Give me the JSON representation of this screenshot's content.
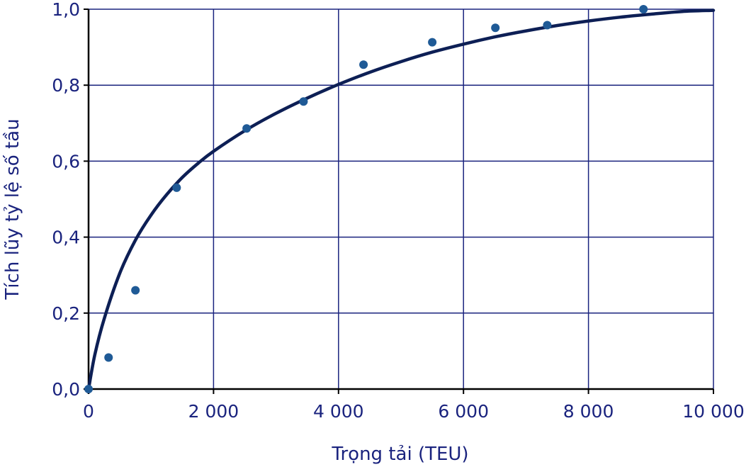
{
  "chart_data": {
    "type": "scatter",
    "xlabel": "Trọng tải (TEU)",
    "ylabel": "Tích lũy tỷ lệ số tầu",
    "xlim": [
      0,
      10000
    ],
    "ylim": [
      0,
      1
    ],
    "grid": true,
    "x_ticks": [
      0,
      2000,
      4000,
      6000,
      8000,
      10000
    ],
    "x_tick_labels": [
      "0",
      "2 000",
      "4 000",
      "6 000",
      "8 000",
      "10 000"
    ],
    "y_ticks": [
      0,
      0.2,
      0.4,
      0.6,
      0.8,
      1.0
    ],
    "y_tick_labels": [
      "0,0",
      "0,2",
      "0,4",
      "0,6",
      "0,8",
      "1,0"
    ],
    "series": [
      {
        "kind": "points",
        "x": [
          0,
          320,
          750,
          1410,
          2530,
          3440,
          4400,
          5500,
          6510,
          7340,
          8880
        ],
        "y": [
          0.0,
          0.083,
          0.26,
          0.53,
          0.686,
          0.757,
          0.854,
          0.913,
          0.951,
          0.958,
          1.0
        ]
      },
      {
        "kind": "fitted-curve",
        "x": [
          0,
          100,
          250,
          500,
          750,
          1000,
          1250,
          1500,
          1750,
          2000,
          2500,
          3000,
          3500,
          4000,
          4500,
          5000,
          5500,
          6000,
          6500,
          7000,
          7500,
          8000,
          8500,
          9000,
          9500,
          10000
        ],
        "y": [
          0.0,
          0.09,
          0.185,
          0.305,
          0.392,
          0.458,
          0.512,
          0.557,
          0.594,
          0.626,
          0.68,
          0.726,
          0.766,
          0.802,
          0.834,
          0.862,
          0.887,
          0.908,
          0.927,
          0.943,
          0.957,
          0.969,
          0.979,
          0.987,
          0.994,
          0.997
        ]
      }
    ],
    "colors": {
      "axis": "#000000",
      "grid": "#1a237e",
      "text": "#1a237e",
      "points": "#1f5a96",
      "curve": "#0d1f55"
    }
  }
}
